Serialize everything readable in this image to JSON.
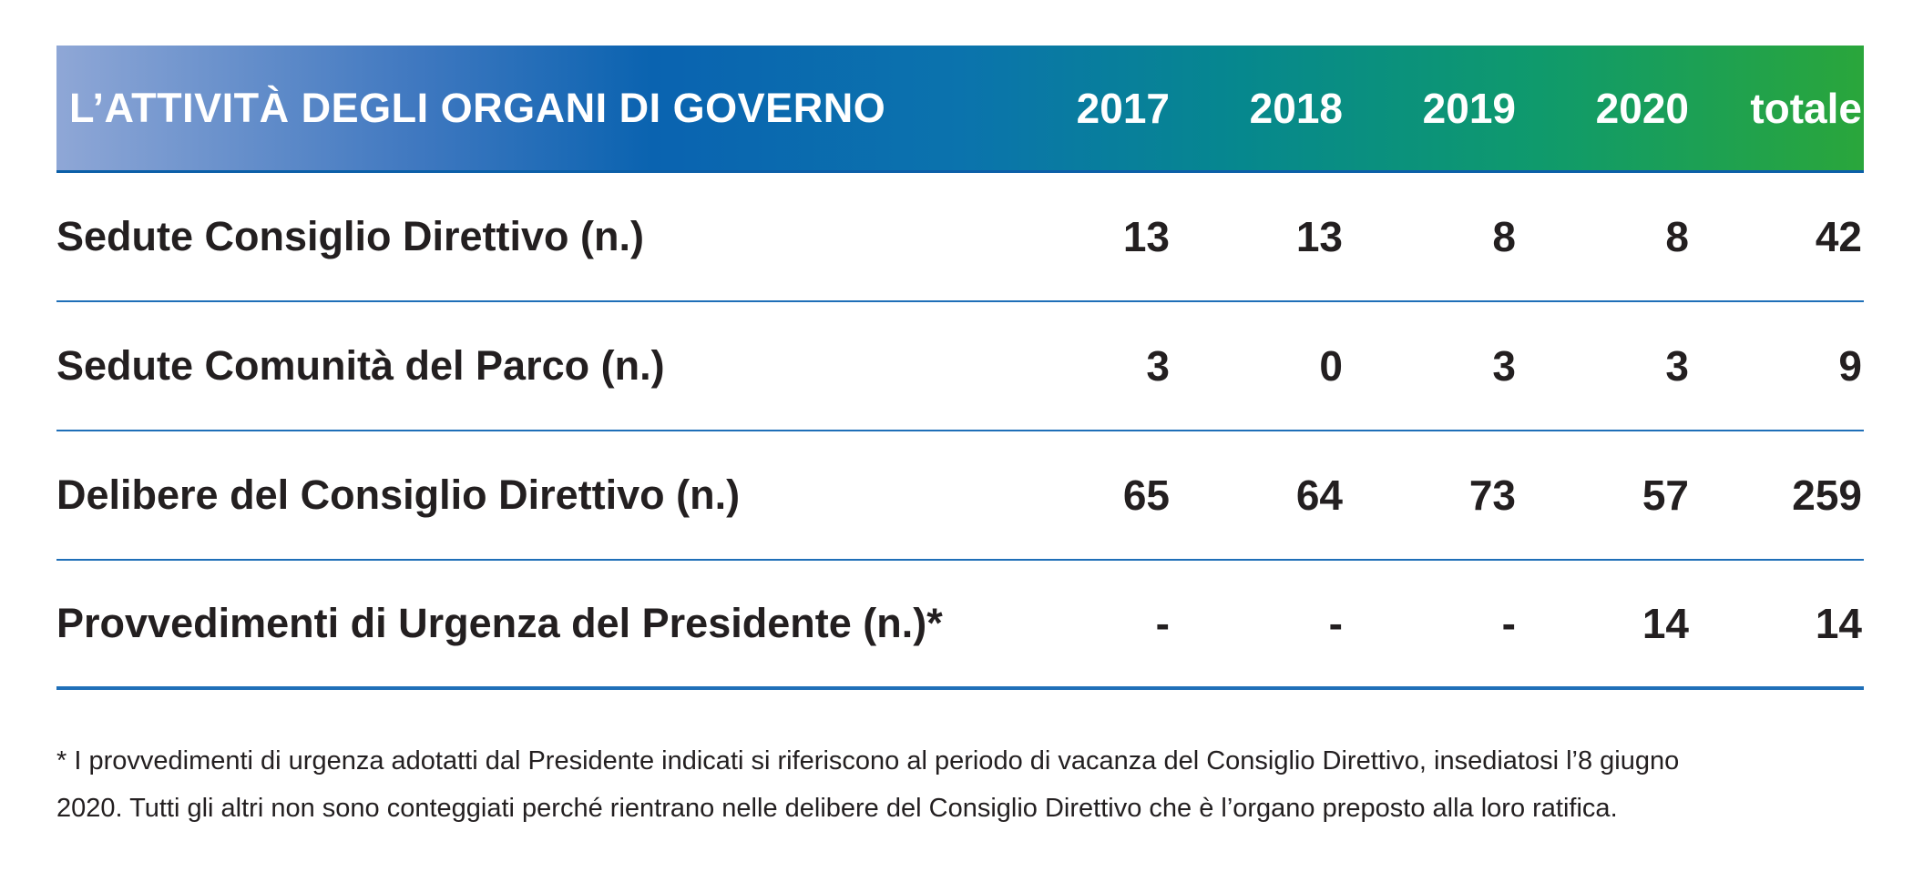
{
  "table": {
    "title": "L’ATTIVITÀ DEGLI ORGANI DI GOVERNO",
    "columns": [
      "2017",
      "2018",
      "2019",
      "2020",
      "totale"
    ],
    "rows": [
      {
        "label": "Sedute Consiglio Direttivo (n.)",
        "values": [
          "13",
          "13",
          "8",
          "8",
          "42"
        ]
      },
      {
        "label": "Sedute Comunità del Parco (n.)",
        "values": [
          "3",
          "0",
          "3",
          "3",
          "9"
        ]
      },
      {
        "label": "Delibere del Consiglio Direttivo (n.)",
        "values": [
          "65",
          "64",
          "73",
          "57",
          "259"
        ]
      },
      {
        "label": "Provvedimenti di Urgenza del Presidente (n.)*",
        "values": [
          "-",
          "-",
          "-",
          "14",
          "14"
        ]
      }
    ]
  },
  "footnote": {
    "line1": "* I provvedimenti di urgenza adotatti dal Presidente indicati si riferiscono al periodo di vacanza del Consiglio Direttivo, insediatosi l’8 giugno",
    "line2": "2020. Tutti gli altri non sono conteggiati perché rientrano nelle delibere del Consiglio Direttivo che è l’organo preposto alla loro ratifica."
  },
  "colors": {
    "header_gradient_start": "#8fa7d6",
    "header_gradient_mid": "#0a63b0",
    "header_gradient_end": "#2aa63b",
    "rule": "#1f6fb8",
    "text": "#231f20"
  }
}
